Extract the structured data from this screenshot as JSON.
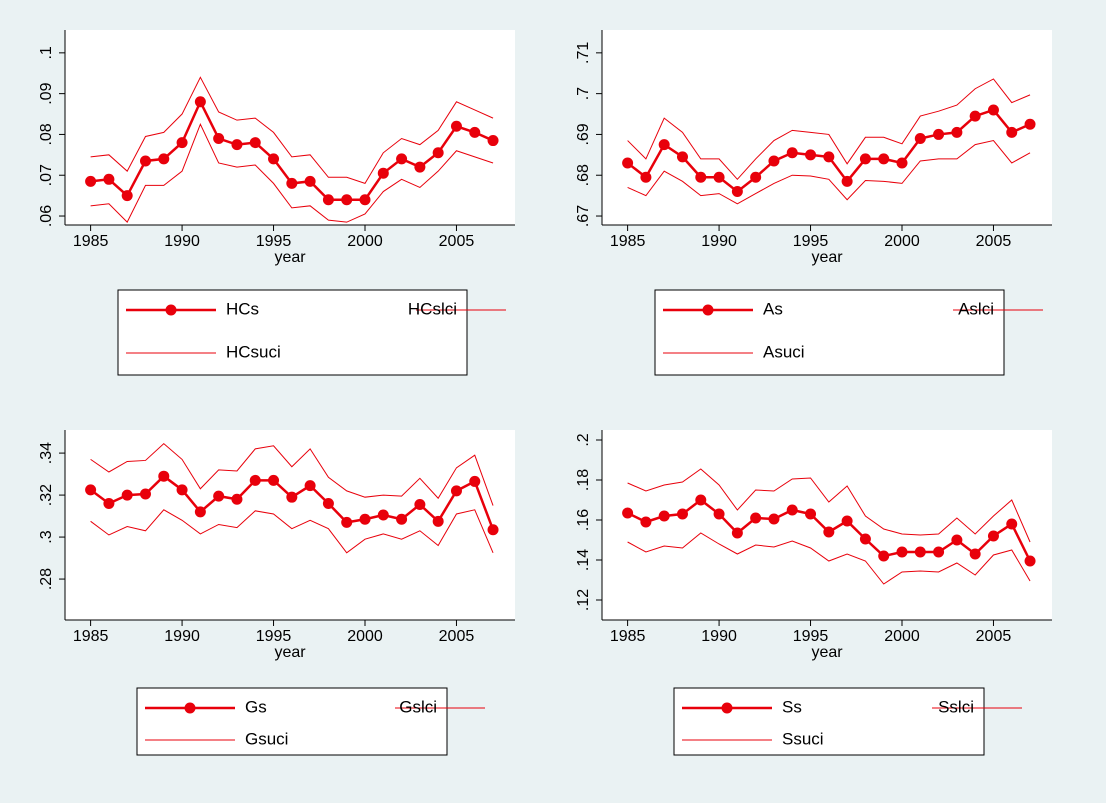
{
  "chart_data": [
    {
      "type": "line",
      "xlabel": "year",
      "x": [
        1985,
        1986,
        1987,
        1988,
        1989,
        1990,
        1991,
        1992,
        1993,
        1994,
        1995,
        1996,
        1997,
        1998,
        1999,
        2000,
        2001,
        2002,
        2003,
        2004,
        2005,
        2006,
        2007
      ],
      "xlim": [
        1983.6,
        2008.2
      ],
      "xticks": [
        1985,
        1990,
        1995,
        2000,
        2005
      ],
      "ylim": [
        0.0578,
        0.1056
      ],
      "yticks": [
        {
          "value": 0.06,
          "label": ".06"
        },
        {
          "value": 0.07,
          "label": ".07"
        },
        {
          "value": 0.08,
          "label": ".08"
        },
        {
          "value": 0.09,
          "label": ".09"
        },
        {
          "value": 0.1,
          "label": ".1"
        }
      ],
      "grid": false,
      "series": [
        {
          "name": "HCs",
          "color": "#e8000b",
          "marker": "circle",
          "values": [
            0.0685,
            0.069,
            0.065,
            0.0735,
            0.074,
            0.078,
            0.088,
            0.079,
            0.0775,
            0.078,
            0.074,
            0.068,
            0.0685,
            0.064,
            0.064,
            0.064,
            0.0705,
            0.074,
            0.072,
            0.0755,
            0.082,
            0.0805,
            0.0785
          ]
        },
        {
          "name": "HCslci",
          "color": "#e8000b",
          "values": [
            0.0625,
            0.063,
            0.0585,
            0.0675,
            0.0675,
            0.071,
            0.0825,
            0.073,
            0.072,
            0.0725,
            0.068,
            0.062,
            0.0625,
            0.059,
            0.0585,
            0.0605,
            0.066,
            0.069,
            0.067,
            0.071,
            0.076,
            0.0745,
            0.073
          ]
        },
        {
          "name": "HCsuci",
          "color": "#e8000b",
          "values": [
            0.0745,
            0.075,
            0.071,
            0.0795,
            0.0805,
            0.085,
            0.094,
            0.0855,
            0.0835,
            0.084,
            0.0805,
            0.0745,
            0.075,
            0.0695,
            0.0695,
            0.068,
            0.0755,
            0.079,
            0.0775,
            0.081,
            0.088,
            0.086,
            0.084
          ]
        }
      ]
    },
    {
      "type": "line",
      "xlabel": "year",
      "x": [
        1985,
        1986,
        1987,
        1988,
        1989,
        1990,
        1991,
        1992,
        1993,
        1994,
        1995,
        1996,
        1997,
        1998,
        1999,
        2000,
        2001,
        2002,
        2003,
        2004,
        2005,
        2006,
        2007
      ],
      "xlim": [
        1983.6,
        2008.2
      ],
      "xticks": [
        1985,
        1990,
        1995,
        2000,
        2005
      ],
      "ylim": [
        0.6678,
        0.7156
      ],
      "yticks": [
        {
          "value": 0.67,
          "label": ".67"
        },
        {
          "value": 0.68,
          "label": ".68"
        },
        {
          "value": 0.69,
          "label": ".69"
        },
        {
          "value": 0.7,
          "label": ".7"
        },
        {
          "value": 0.71,
          "label": ".71"
        }
      ],
      "grid": false,
      "series": [
        {
          "name": "As",
          "color": "#e8000b",
          "marker": "circle",
          "values": [
            0.683,
            0.6795,
            0.6875,
            0.6845,
            0.6795,
            0.6795,
            0.676,
            0.6795,
            0.6835,
            0.6855,
            0.685,
            0.6845,
            0.6785,
            0.684,
            0.684,
            0.683,
            0.689,
            0.69,
            0.6905,
            0.6945,
            0.696,
            0.6905,
            0.6925
          ]
        },
        {
          "name": "Aslci",
          "color": "#e8000b",
          "values": [
            0.677,
            0.675,
            0.681,
            0.6785,
            0.675,
            0.6755,
            0.673,
            0.6755,
            0.678,
            0.68,
            0.6798,
            0.679,
            0.674,
            0.6787,
            0.6785,
            0.678,
            0.6835,
            0.684,
            0.684,
            0.6875,
            0.6885,
            0.683,
            0.6855
          ]
        },
        {
          "name": "Asuci",
          "color": "#e8000b",
          "values": [
            0.6885,
            0.684,
            0.694,
            0.6905,
            0.684,
            0.684,
            0.679,
            0.684,
            0.6885,
            0.691,
            0.6905,
            0.69,
            0.6828,
            0.6893,
            0.6893,
            0.6877,
            0.6945,
            0.6957,
            0.6972,
            0.7012,
            0.7036,
            0.6978,
            0.6997
          ]
        }
      ]
    },
    {
      "type": "line",
      "xlabel": "year",
      "x": [
        1985,
        1986,
        1987,
        1988,
        1989,
        1990,
        1991,
        1992,
        1993,
        1994,
        1995,
        1996,
        1997,
        1998,
        1999,
        2000,
        2001,
        2002,
        2003,
        2004,
        2005,
        2006,
        2007
      ],
      "xlim": [
        1983.6,
        2008.2
      ],
      "xticks": [
        1985,
        1990,
        1995,
        2000,
        2005
      ],
      "ylim": [
        0.2605,
        0.351
      ],
      "yticks": [
        {
          "value": 0.28,
          "label": ".28"
        },
        {
          "value": 0.3,
          "label": ".3"
        },
        {
          "value": 0.32,
          "label": ".32"
        },
        {
          "value": 0.34,
          "label": ".34"
        }
      ],
      "grid": false,
      "series": [
        {
          "name": "Gs",
          "color": "#e8000b",
          "marker": "circle",
          "values": [
            0.3225,
            0.316,
            0.32,
            0.3205,
            0.329,
            0.3225,
            0.312,
            0.3195,
            0.318,
            0.327,
            0.327,
            0.319,
            0.3245,
            0.316,
            0.307,
            0.3085,
            0.3105,
            0.3085,
            0.3155,
            0.3075,
            0.322,
            0.3265,
            0.3035
          ]
        },
        {
          "name": "Gslci",
          "color": "#e8000b",
          "values": [
            0.3075,
            0.301,
            0.305,
            0.303,
            0.313,
            0.308,
            0.3015,
            0.306,
            0.3045,
            0.3125,
            0.311,
            0.304,
            0.308,
            0.304,
            0.2925,
            0.299,
            0.3015,
            0.299,
            0.303,
            0.296,
            0.311,
            0.313,
            0.2925
          ]
        },
        {
          "name": "Gsuci",
          "color": "#e8000b",
          "values": [
            0.337,
            0.331,
            0.336,
            0.3365,
            0.3445,
            0.337,
            0.323,
            0.332,
            0.3315,
            0.342,
            0.3435,
            0.3335,
            0.342,
            0.3285,
            0.322,
            0.319,
            0.32,
            0.3195,
            0.328,
            0.3185,
            0.333,
            0.339,
            0.315
          ]
        }
      ]
    },
    {
      "type": "line",
      "xlabel": "year",
      "x": [
        1985,
        1986,
        1987,
        1988,
        1989,
        1990,
        1991,
        1992,
        1993,
        1994,
        1995,
        1996,
        1997,
        1998,
        1999,
        2000,
        2001,
        2002,
        2003,
        2004,
        2005,
        2006,
        2007
      ],
      "xlim": [
        1983.6,
        2008.2
      ],
      "xticks": [
        1985,
        1990,
        1995,
        2000,
        2005
      ],
      "ylim": [
        0.11,
        0.205
      ],
      "yticks": [
        {
          "value": 0.12,
          "label": ".12"
        },
        {
          "value": 0.14,
          "label": ".14"
        },
        {
          "value": 0.16,
          "label": ".16"
        },
        {
          "value": 0.18,
          "label": ".18"
        },
        {
          "value": 0.2,
          "label": ".2"
        }
      ],
      "grid": false,
      "series": [
        {
          "name": "Ss",
          "color": "#e8000b",
          "marker": "circle",
          "values": [
            0.1635,
            0.159,
            0.162,
            0.163,
            0.17,
            0.163,
            0.1535,
            0.161,
            0.1605,
            0.165,
            0.163,
            0.154,
            0.1595,
            0.1505,
            0.142,
            0.144,
            0.144,
            0.144,
            0.15,
            0.143,
            0.152,
            0.158,
            0.1395
          ]
        },
        {
          "name": "Sslci",
          "color": "#e8000b",
          "values": [
            0.149,
            0.144,
            0.147,
            0.146,
            0.1535,
            0.148,
            0.143,
            0.1475,
            0.1465,
            0.1495,
            0.146,
            0.1395,
            0.143,
            0.1395,
            0.128,
            0.134,
            0.1345,
            0.134,
            0.1385,
            0.1325,
            0.1425,
            0.145,
            0.1295
          ]
        },
        {
          "name": "Ssuci",
          "color": "#e8000b",
          "values": [
            0.1785,
            0.1745,
            0.1775,
            0.179,
            0.1855,
            0.1775,
            0.165,
            0.175,
            0.1745,
            0.1805,
            0.181,
            0.169,
            0.177,
            0.162,
            0.1555,
            0.153,
            0.1525,
            0.153,
            0.161,
            0.153,
            0.162,
            0.17,
            0.149
          ]
        }
      ]
    }
  ]
}
